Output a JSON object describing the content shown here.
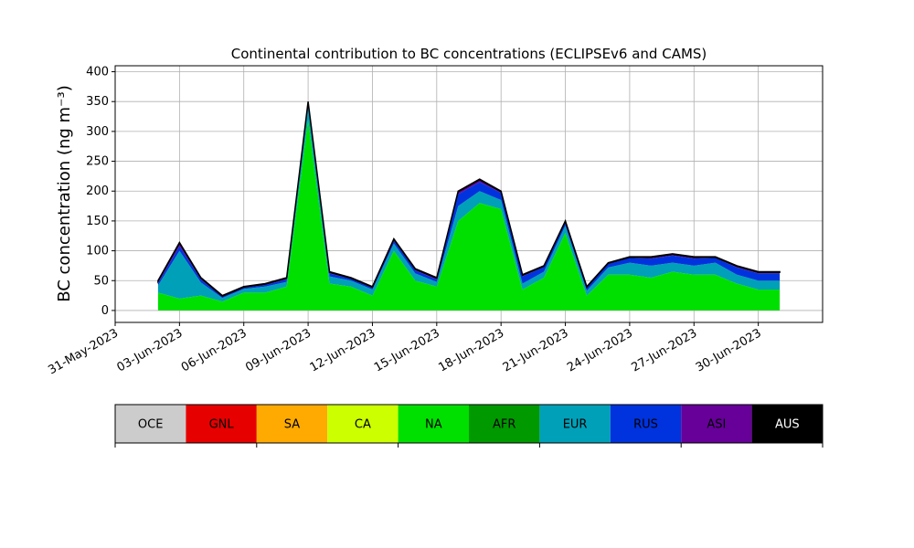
{
  "chart_data": {
    "type": "stacked-area",
    "title": "Continental contribution to BC concentrations (ECLIPSEv6 and CAMS)",
    "y_label": "BC concentration (ng m⁻³)",
    "x": [
      "2023-06-02",
      "2023-06-03",
      "2023-06-04",
      "2023-06-05",
      "2023-06-06",
      "2023-06-07",
      "2023-06-08",
      "2023-06-09",
      "2023-06-10",
      "2023-06-11",
      "2023-06-12",
      "2023-06-13",
      "2023-06-14",
      "2023-06-15",
      "2023-06-16",
      "2023-06-17",
      "2023-06-18",
      "2023-06-19",
      "2023-06-20",
      "2023-06-21",
      "2023-06-22",
      "2023-06-23",
      "2023-06-24",
      "2023-06-25",
      "2023-06-26",
      "2023-06-27",
      "2023-06-28",
      "2023-06-29",
      "2023-06-30",
      "2023-07-01"
    ],
    "xlim": [
      "2023-05-31",
      "2023-07-03"
    ],
    "xticks": [
      {
        "value": "2023-05-31",
        "label": "31-May-2023"
      },
      {
        "value": "2023-06-03",
        "label": "03-Jun-2023"
      },
      {
        "value": "2023-06-06",
        "label": "06-Jun-2023"
      },
      {
        "value": "2023-06-09",
        "label": "09-Jun-2023"
      },
      {
        "value": "2023-06-12",
        "label": "12-Jun-2023"
      },
      {
        "value": "2023-06-15",
        "label": "15-Jun-2023"
      },
      {
        "value": "2023-06-18",
        "label": "18-Jun-2023"
      },
      {
        "value": "2023-06-21",
        "label": "21-Jun-2023"
      },
      {
        "value": "2023-06-24",
        "label": "24-Jun-2023"
      },
      {
        "value": "2023-06-27",
        "label": "27-Jun-2023"
      },
      {
        "value": "2023-06-30",
        "label": "30-Jun-2023"
      }
    ],
    "ylim": [
      -20,
      410
    ],
    "yticks": [
      0,
      50,
      100,
      150,
      200,
      250,
      300,
      350,
      400
    ],
    "grid": true,
    "series": [
      {
        "name": "OCE",
        "color": "#cccccc",
        "values": [
          0,
          0,
          0,
          0,
          0,
          0,
          0,
          0,
          0,
          0,
          0,
          0,
          0,
          0,
          0,
          0,
          0,
          0,
          0,
          0,
          0,
          0,
          0,
          0,
          0,
          0,
          0,
          0,
          0,
          0
        ]
      },
      {
        "name": "GNL",
        "color": "#e60000",
        "values": [
          0,
          0,
          0,
          0,
          0,
          0,
          0,
          0,
          0,
          0,
          0,
          0,
          0,
          0,
          0,
          0,
          0,
          0,
          0,
          0,
          0,
          0,
          0,
          0,
          0,
          0,
          0,
          0,
          0,
          0
        ]
      },
      {
        "name": "SA",
        "color": "#ffaa00",
        "values": [
          0,
          0,
          0,
          0,
          0,
          0,
          0,
          0,
          0,
          0,
          0,
          0,
          0,
          0,
          0,
          0,
          0,
          0,
          0,
          0,
          0,
          0,
          0,
          0,
          0,
          0,
          0,
          0,
          0,
          0
        ]
      },
      {
        "name": "CA",
        "color": "#ccff00",
        "values": [
          0,
          0,
          0,
          0,
          0,
          0,
          0,
          0,
          0,
          0,
          0,
          0,
          0,
          0,
          0,
          0,
          0,
          0,
          0,
          0,
          0,
          0,
          0,
          0,
          0,
          0,
          0,
          0,
          0,
          0
        ]
      },
      {
        "name": "NA",
        "color": "#00e000",
        "values": [
          30,
          20,
          25,
          15,
          30,
          30,
          40,
          320,
          45,
          40,
          25,
          100,
          50,
          40,
          150,
          180,
          170,
          35,
          55,
          130,
          25,
          60,
          60,
          55,
          65,
          60,
          60,
          45,
          35,
          35
        ]
      },
      {
        "name": "AFR",
        "color": "#009900",
        "values": [
          0,
          0,
          0,
          0,
          0,
          0,
          0,
          0,
          0,
          0,
          0,
          0,
          0,
          0,
          0,
          0,
          0,
          0,
          0,
          0,
          0,
          0,
          0,
          0,
          0,
          0,
          0,
          0,
          0,
          0
        ]
      },
      {
        "name": "EUR",
        "color": "#00a0b8",
        "values": [
          12,
          80,
          22,
          6,
          6,
          10,
          8,
          20,
          12,
          10,
          10,
          12,
          12,
          8,
          25,
          20,
          15,
          10,
          10,
          12,
          8,
          12,
          20,
          20,
          15,
          15,
          20,
          15,
          15,
          15
        ]
      },
      {
        "name": "RUS",
        "color": "#0033dd",
        "values": [
          4,
          8,
          5,
          2,
          2,
          3,
          4,
          6,
          5,
          3,
          3,
          5,
          5,
          4,
          20,
          15,
          12,
          12,
          8,
          5,
          5,
          6,
          8,
          12,
          12,
          12,
          8,
          12,
          12,
          12
        ]
      },
      {
        "name": "ASI",
        "color": "#660099",
        "values": [
          3,
          5,
          2,
          1,
          1,
          1,
          2,
          3,
          2,
          1,
          1,
          2,
          2,
          2,
          4,
          4,
          2,
          2,
          1,
          2,
          1,
          1,
          1,
          2,
          2,
          2,
          1,
          2,
          2,
          2
        ]
      },
      {
        "name": "AUS",
        "color": "#000000",
        "values": [
          1,
          1,
          1,
          1,
          1,
          1,
          1,
          1,
          1,
          1,
          1,
          1,
          1,
          1,
          1,
          1,
          1,
          1,
          1,
          1,
          1,
          1,
          1,
          1,
          1,
          1,
          1,
          1,
          1,
          1
        ]
      }
    ]
  }
}
